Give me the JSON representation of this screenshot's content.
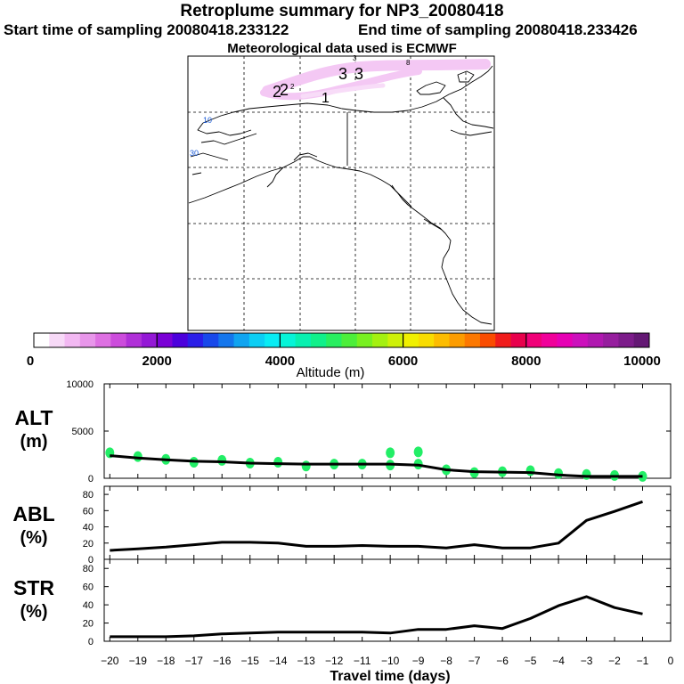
{
  "header": {
    "title": "Retroplume summary for NP3_20080418",
    "start": "Start time of sampling 20080418.233122",
    "end": "End time of sampling 20080418.233426",
    "met": "Meteorological data used is ECMWF"
  },
  "map": {
    "plume_labels": [
      "3",
      "3",
      "2",
      "2",
      "1"
    ],
    "small_labels": [
      "3",
      "2",
      "8"
    ],
    "lat_labels": [
      "10",
      "30"
    ]
  },
  "colorbar": {
    "title": "Altitude (m)",
    "tick_labels": [
      "0",
      "2000",
      "4000",
      "6000",
      "8000",
      "10000"
    ],
    "colors": [
      "#ffffff",
      "#f7d9f7",
      "#f2b8f2",
      "#e896ea",
      "#de70e2",
      "#cc4cdc",
      "#b030d8",
      "#9418d6",
      "#7a00d6",
      "#4c00dc",
      "#2a1ee8",
      "#1848ea",
      "#1476ec",
      "#10a4f0",
      "#0ccef4",
      "#08ecf4",
      "#06f4d8",
      "#08f0b0",
      "#10f08a",
      "#28ee60",
      "#4cee3a",
      "#78f020",
      "#a4f010",
      "#cef008",
      "#f0f000",
      "#f8dc00",
      "#fcbc00",
      "#fc9c00",
      "#fc7800",
      "#fa4c00",
      "#f01c1c",
      "#e8004c",
      "#f00078",
      "#f0009a",
      "#e600b4",
      "#cc10bc",
      "#b018b0",
      "#961e9e",
      "#7c1c8a",
      "#641874"
    ]
  },
  "panels": {
    "alt_label": "ALT",
    "alt_unit": "(m)",
    "abl_label": "ABL",
    "abl_unit": "(%)",
    "str_label": "STR",
    "str_unit": "(%)",
    "xlabel": "Travel time (days)"
  },
  "chart_data": [
    {
      "type": "line",
      "title": "ALT",
      "ylabel": "ALT (m)",
      "xlabel": "Travel time (days)",
      "x": [
        -20,
        -19,
        -18,
        -17,
        -16,
        -15,
        -14,
        -13,
        -12,
        -11,
        -10,
        -9,
        -8,
        -7,
        -6,
        -5,
        -4,
        -3,
        -2,
        -1
      ],
      "values": [
        2400,
        2150,
        1950,
        1800,
        1750,
        1600,
        1550,
        1500,
        1500,
        1500,
        1500,
        1400,
        900,
        700,
        650,
        600,
        350,
        200,
        200,
        200
      ],
      "ylim": [
        0,
        10000
      ],
      "yticks": [
        0,
        5000,
        10000
      ],
      "scatter": {
        "color": "#22ee66",
        "x": [
          -20,
          -19,
          -18,
          -17,
          -16,
          -15,
          -14,
          -13,
          -12,
          -11,
          -10,
          -10,
          -9,
          -9,
          -8,
          -7,
          -6,
          -5,
          -4,
          -3,
          -2,
          -1
        ],
        "y": [
          2700,
          2300,
          2000,
          1700,
          1900,
          1600,
          1700,
          1300,
          1500,
          1500,
          1400,
          2700,
          1500,
          2800,
          900,
          600,
          700,
          800,
          500,
          400,
          300,
          200
        ]
      }
    },
    {
      "type": "line",
      "title": "ABL",
      "ylabel": "ABL (%)",
      "x": [
        -20,
        -19,
        -18,
        -17,
        -16,
        -15,
        -14,
        -13,
        -12,
        -11,
        -10,
        -9,
        -8,
        -7,
        -6,
        -5,
        -4,
        -3,
        -2,
        -1
      ],
      "values": [
        11,
        13,
        15,
        18,
        21,
        21,
        20,
        16,
        16,
        17,
        16,
        16,
        14,
        18,
        14,
        14,
        20,
        48,
        59,
        71
      ],
      "ylim": [
        0,
        90
      ],
      "yticks": [
        0,
        20,
        40,
        60,
        80
      ]
    },
    {
      "type": "line",
      "title": "STR",
      "ylabel": "STR (%)",
      "x": [
        -20,
        -19,
        -18,
        -17,
        -16,
        -15,
        -14,
        -13,
        -12,
        -11,
        -10,
        -9,
        -8,
        -7,
        -6,
        -5,
        -4,
        -3,
        -2,
        -1
      ],
      "values": [
        5,
        5,
        5,
        6,
        8,
        9,
        10,
        10,
        10,
        10,
        9,
        13,
        13,
        17,
        14,
        25,
        39,
        49,
        37,
        30
      ],
      "ylim": [
        0,
        90
      ],
      "yticks": [
        0,
        20,
        40,
        60,
        80
      ]
    }
  ],
  "x_axis": {
    "ticks": [
      -20,
      -19,
      -18,
      -17,
      -16,
      -15,
      -14,
      -13,
      -12,
      -11,
      -10,
      -9,
      -8,
      -7,
      -6,
      -5,
      -4,
      -3,
      -2,
      -1,
      0
    ],
    "tick_labels": [
      "−20",
      "−19",
      "−18",
      "−17",
      "−16",
      "−15",
      "−14",
      "−13",
      "−12",
      "−11",
      "−10",
      "−9",
      "−8",
      "−7",
      "−6",
      "−5",
      "−4",
      "−3",
      "−2",
      "−1",
      "0"
    ]
  }
}
